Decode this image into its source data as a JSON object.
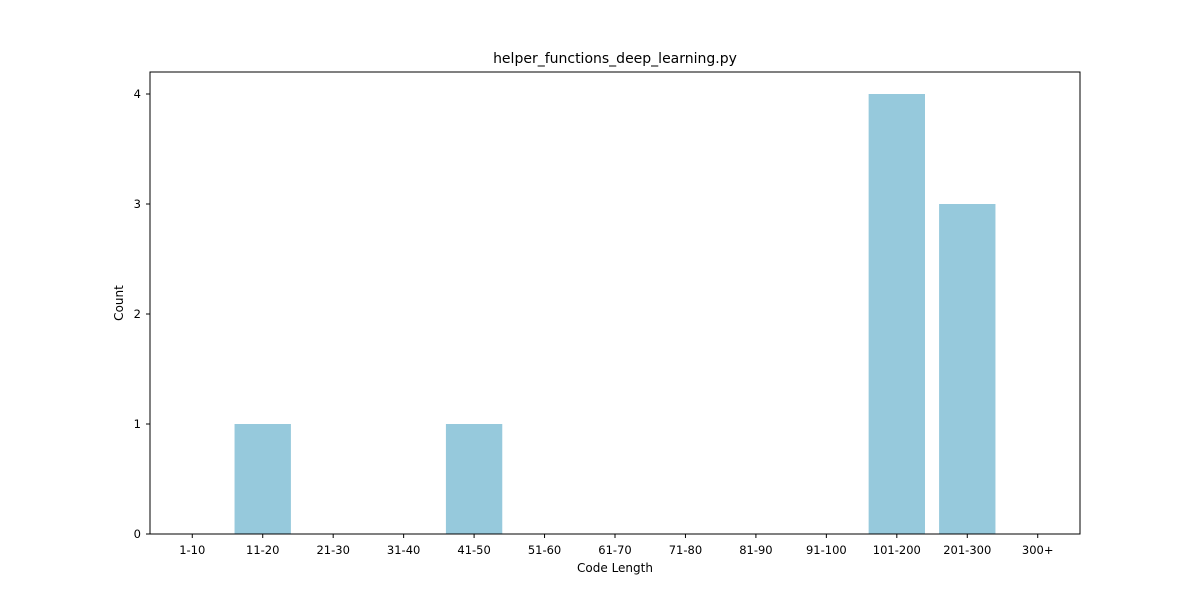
{
  "chart_data": {
    "type": "bar",
    "title": "helper_functions_deep_learning.py",
    "xlabel": "Code Length",
    "ylabel": "Count",
    "categories": [
      "1-10",
      "11-20",
      "21-30",
      "31-40",
      "41-50",
      "51-60",
      "61-70",
      "71-80",
      "81-90",
      "91-100",
      "101-200",
      "201-300",
      "300+"
    ],
    "values": [
      0,
      1,
      0,
      0,
      1,
      0,
      0,
      0,
      0,
      0,
      4,
      3,
      0
    ],
    "ylim": [
      0,
      4.2
    ],
    "yticks": [
      0,
      1,
      2,
      3,
      4
    ],
    "grid": false,
    "bar_color": "#96c9dc"
  }
}
